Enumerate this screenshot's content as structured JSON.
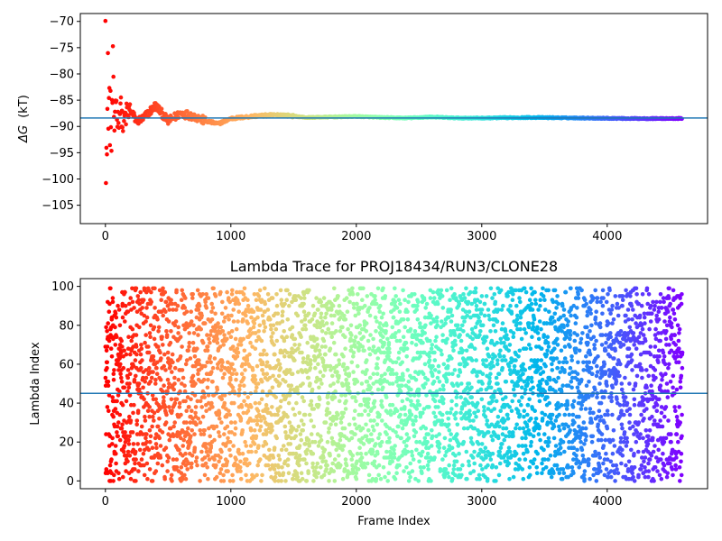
{
  "chart_data": [
    {
      "type": "scatter",
      "title": "",
      "xlabel": "",
      "ylabel": "ΔG (kT)",
      "ylabel_symbol": "ΔG",
      "ylabel_unit": "(kT)",
      "xlim": [
        -200,
        4800
      ],
      "ylim": [
        -108.5,
        -68.5
      ],
      "xticks": [
        0,
        1000,
        2000,
        3000,
        4000
      ],
      "xtick_labels": [
        "0",
        "1000",
        "2000",
        "3000",
        "4000"
      ],
      "yticks": [
        -70,
        -75,
        -80,
        -85,
        -90,
        -95,
        -100,
        -105
      ],
      "ytick_labels": [
        "−70",
        "−75",
        "−80",
        "−85",
        "−90",
        "−95",
        "−100",
        "−105"
      ],
      "grid": false,
      "colormap": "rainbow (red at start, violet at end)",
      "n_frames": 4600,
      "hline": {
        "y": -88.4,
        "color": "#1f77b4"
      },
      "series": [
        {
          "x": [
            0,
            10,
            20,
            30,
            40,
            50,
            60,
            70,
            80,
            100,
            120,
            140,
            160,
            200,
            250,
            300,
            400,
            500,
            600,
            700,
            800,
            900,
            1000,
            1200,
            1400,
            1600,
            1800,
            2000,
            2200,
            2400,
            2600,
            2800,
            3000,
            3400,
            3800,
            4200,
            4600
          ],
          "values": [
            -70,
            -100,
            -80,
            -90,
            -86,
            -95,
            -77,
            -92,
            -84,
            -89,
            -86,
            -90,
            -88,
            -87,
            -89,
            -88.5,
            -86,
            -89,
            -87.5,
            -88,
            -89,
            -89.5,
            -88.5,
            -88,
            -87.8,
            -88.3,
            -88.2,
            -88.1,
            -88.3,
            -88.4,
            -88.2,
            -88.4,
            -88.4,
            -88.3,
            -88.4,
            -88.5,
            -88.5
          ]
        }
      ]
    },
    {
      "type": "scatter",
      "title": "Lambda Trace for PROJ18434/RUN3/CLONE28",
      "xlabel": "Frame Index",
      "ylabel": "Lambda Index",
      "xlim": [
        -200,
        4800
      ],
      "ylim": [
        -4,
        104
      ],
      "xticks": [
        0,
        1000,
        2000,
        3000,
        4000
      ],
      "xtick_labels": [
        "0",
        "1000",
        "2000",
        "3000",
        "4000"
      ],
      "yticks": [
        0,
        20,
        40,
        60,
        80,
        100
      ],
      "ytick_labels": [
        "0",
        "20",
        "40",
        "60",
        "80",
        "100"
      ],
      "grid": false,
      "colormap": "rainbow (red at start, violet at end)",
      "n_frames": 4600,
      "lambda_range": [
        0,
        99
      ],
      "description_of_points": "one point per frame, lambda index spread uniformly over 0–99",
      "hline": {
        "y": 45,
        "color": "#1f77b4"
      }
    }
  ]
}
